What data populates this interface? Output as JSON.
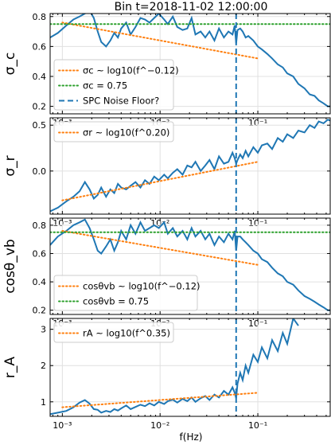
{
  "figure": {
    "title": "Bin t=2018-11-02 12:00:00",
    "xlabel": "f(Hz)"
  },
  "colors": {
    "data": "#1f77b4",
    "fit": "#ff7f0e",
    "ref": "#2ca02c",
    "noise": "#1f77b4",
    "grid": "#e0e0e0"
  },
  "chart_data": [
    {
      "type": "line",
      "ylabel": "σ_c",
      "xscale": "log",
      "xlim": [
        0.00075,
        0.55
      ],
      "ylim": [
        0.15,
        0.82
      ],
      "yticks": [
        0.2,
        0.4,
        0.6,
        0.8
      ],
      "yticklabels": [
        "0.2",
        "0.4",
        "0.6",
        "0.8"
      ],
      "xticklabels": [
        "10⁻³",
        "10⁻²",
        "10⁻¹"
      ],
      "legend": {
        "position": "bottom-left",
        "entries": [
          {
            "text": "σc ~ log10(f^−0.12)",
            "style": "fit"
          },
          {
            "text": "σc = 0.75",
            "style": "ref"
          },
          {
            "text": "SPC Noise Floor?",
            "style": "noise"
          }
        ]
      },
      "series": [
        {
          "style": "data",
          "x": [
            0.00075,
            0.0009,
            0.0011,
            0.0013,
            0.0015,
            0.0017,
            0.0019,
            0.0021,
            0.0023,
            0.0025,
            0.0028,
            0.0031,
            0.0034,
            0.0037,
            0.004,
            0.0045,
            0.005,
            0.0056,
            0.0063,
            0.007,
            0.0078,
            0.0087,
            0.0097,
            0.011,
            0.012,
            0.0135,
            0.015,
            0.017,
            0.019,
            0.021,
            0.023,
            0.026,
            0.029,
            0.032,
            0.036,
            0.04,
            0.045,
            0.05,
            0.055,
            0.058,
            0.06,
            0.062,
            0.066,
            0.07,
            0.075,
            0.08,
            0.09,
            0.1,
            0.11,
            0.125,
            0.14,
            0.16,
            0.18,
            0.2,
            0.23,
            0.26,
            0.3,
            0.34,
            0.38,
            0.42,
            0.47,
            0.52,
            0.55
          ],
          "y": [
            0.66,
            0.69,
            0.74,
            0.78,
            0.8,
            0.82,
            0.84,
            0.79,
            0.7,
            0.63,
            0.6,
            0.64,
            0.69,
            0.66,
            0.72,
            0.76,
            0.68,
            0.73,
            0.79,
            0.78,
            0.76,
            0.79,
            0.82,
            0.78,
            0.75,
            0.8,
            0.73,
            0.71,
            0.72,
            0.79,
            0.68,
            0.7,
            0.66,
            0.7,
            0.64,
            0.72,
            0.66,
            0.7,
            0.68,
            0.74,
            0.62,
            0.71,
            0.72,
            0.7,
            0.66,
            0.67,
            0.64,
            0.6,
            0.58,
            0.55,
            0.52,
            0.48,
            0.46,
            0.42,
            0.4,
            0.35,
            0.32,
            0.28,
            0.27,
            0.24,
            0.22,
            0.2,
            0.2
          ]
        },
        {
          "style": "fit",
          "x": [
            0.001,
            0.1
          ],
          "y": [
            0.76,
            0.52
          ]
        },
        {
          "style": "ref",
          "x": [
            0.00075,
            0.55
          ],
          "y": [
            0.75,
            0.75
          ]
        },
        {
          "style": "noise",
          "vline": 0.06
        }
      ]
    },
    {
      "type": "line",
      "ylabel": "σ_r",
      "xscale": "log",
      "xlim": [
        0.00075,
        0.55
      ],
      "ylim": [
        -0.47,
        0.58
      ],
      "yticks": [
        0.0,
        0.5
      ],
      "yticklabels": [
        "0.0",
        "0.5"
      ],
      "xticklabels": [
        "10⁻³",
        "10⁻²",
        "10⁻¹"
      ],
      "legend": {
        "position": "top-left",
        "entries": [
          {
            "text": "σr ~ log10(f^0.20)",
            "style": "fit"
          }
        ]
      },
      "series": [
        {
          "style": "data",
          "x": [
            0.00075,
            0.0009,
            0.0011,
            0.0013,
            0.0015,
            0.0017,
            0.0019,
            0.0021,
            0.0023,
            0.0025,
            0.0028,
            0.0031,
            0.0034,
            0.0037,
            0.004,
            0.0045,
            0.005,
            0.0056,
            0.0063,
            0.007,
            0.0078,
            0.0087,
            0.0097,
            0.011,
            0.012,
            0.0135,
            0.015,
            0.017,
            0.019,
            0.021,
            0.023,
            0.026,
            0.029,
            0.032,
            0.036,
            0.04,
            0.045,
            0.05,
            0.055,
            0.058,
            0.06,
            0.062,
            0.066,
            0.07,
            0.075,
            0.08,
            0.09,
            0.1,
            0.11,
            0.125,
            0.14,
            0.16,
            0.18,
            0.2,
            0.23,
            0.26,
            0.3,
            0.34,
            0.38,
            0.42,
            0.47,
            0.52,
            0.55
          ],
          "y": [
            -0.44,
            -0.4,
            -0.33,
            -0.28,
            -0.22,
            -0.12,
            -0.2,
            -0.3,
            -0.26,
            -0.18,
            -0.28,
            -0.2,
            -0.24,
            -0.14,
            -0.18,
            -0.2,
            -0.16,
            -0.12,
            -0.18,
            -0.1,
            -0.14,
            -0.06,
            -0.1,
            -0.04,
            -0.08,
            -0.02,
            0.02,
            -0.04,
            0.06,
            0.04,
            0.1,
            0.0,
            0.06,
            0.12,
            0.02,
            0.16,
            0.08,
            0.1,
            0.2,
            0.14,
            0.08,
            0.12,
            0.18,
            0.14,
            0.22,
            0.16,
            0.26,
            0.2,
            0.28,
            0.3,
            0.24,
            0.36,
            0.32,
            0.4,
            0.36,
            0.44,
            0.42,
            0.5,
            0.47,
            0.54,
            0.52,
            0.56,
            0.55
          ]
        },
        {
          "style": "fit",
          "x": [
            0.001,
            0.1
          ],
          "y": [
            -0.32,
            0.1
          ]
        },
        {
          "style": "noise",
          "vline": 0.06
        }
      ]
    },
    {
      "type": "line",
      "ylabel": "cosθ_vb",
      "xscale": "log",
      "xlim": [
        0.00075,
        0.55
      ],
      "ylim": [
        0.17,
        0.85
      ],
      "yticks": [
        0.2,
        0.4,
        0.6,
        0.8
      ],
      "yticklabels": [
        "0.2",
        "0.4",
        "0.6",
        "0.8"
      ],
      "xticklabels": [
        "10⁻³",
        "10⁻²",
        "10⁻¹"
      ],
      "legend": {
        "position": "bottom-left",
        "entries": [
          {
            "text": "cosθvb ~ log10(f^−0.12)",
            "style": "fit"
          },
          {
            "text": "cosθvb = 0.75",
            "style": "ref"
          }
        ]
      },
      "series": [
        {
          "style": "data",
          "x": [
            0.00075,
            0.0009,
            0.0011,
            0.0013,
            0.0015,
            0.0017,
            0.0019,
            0.0021,
            0.0023,
            0.0025,
            0.0028,
            0.0031,
            0.0034,
            0.0037,
            0.004,
            0.0045,
            0.005,
            0.0056,
            0.0063,
            0.007,
            0.0078,
            0.0087,
            0.0097,
            0.011,
            0.012,
            0.0135,
            0.015,
            0.017,
            0.019,
            0.021,
            0.023,
            0.026,
            0.029,
            0.032,
            0.036,
            0.04,
            0.045,
            0.05,
            0.055,
            0.058,
            0.06,
            0.062,
            0.066,
            0.07,
            0.075,
            0.08,
            0.09,
            0.1,
            0.11,
            0.125,
            0.14,
            0.16,
            0.18,
            0.2,
            0.23,
            0.26,
            0.3,
            0.34,
            0.38,
            0.42,
            0.47,
            0.52,
            0.55
          ],
          "y": [
            0.66,
            0.72,
            0.76,
            0.8,
            0.82,
            0.84,
            0.78,
            0.7,
            0.62,
            0.6,
            0.65,
            0.7,
            0.62,
            0.68,
            0.76,
            0.7,
            0.8,
            0.74,
            0.82,
            0.76,
            0.78,
            0.8,
            0.78,
            0.82,
            0.74,
            0.78,
            0.72,
            0.76,
            0.7,
            0.78,
            0.72,
            0.76,
            0.7,
            0.74,
            0.66,
            0.72,
            0.68,
            0.74,
            0.7,
            0.76,
            0.62,
            0.72,
            0.72,
            0.7,
            0.68,
            0.66,
            0.62,
            0.6,
            0.56,
            0.54,
            0.5,
            0.46,
            0.44,
            0.4,
            0.38,
            0.34,
            0.3,
            0.28,
            0.26,
            0.24,
            0.22,
            0.2,
            0.2
          ]
        },
        {
          "style": "fit",
          "x": [
            0.001,
            0.1
          ],
          "y": [
            0.76,
            0.52
          ]
        },
        {
          "style": "ref",
          "x": [
            0.00075,
            0.55
          ],
          "y": [
            0.75,
            0.75
          ]
        },
        {
          "style": "noise",
          "vline": 0.06
        }
      ]
    },
    {
      "type": "line",
      "ylabel": "r_A",
      "xscale": "log",
      "xlim": [
        0.00075,
        0.55
      ],
      "ylim": [
        0.6,
        3.3
      ],
      "yticks": [
        1,
        2,
        3
      ],
      "yticklabels": [
        "1",
        "2",
        "3"
      ],
      "xticklabels": [
        "10⁻³",
        "10⁻²",
        "10⁻¹"
      ],
      "legend": {
        "position": "top-left",
        "entries": [
          {
            "text": "rA ~ log10(f^0.35)",
            "style": "fit"
          }
        ]
      },
      "series": [
        {
          "style": "data",
          "x": [
            0.00075,
            0.0009,
            0.0011,
            0.0013,
            0.0015,
            0.0017,
            0.0019,
            0.0021,
            0.0023,
            0.0025,
            0.0028,
            0.0031,
            0.0034,
            0.0037,
            0.004,
            0.0045,
            0.005,
            0.0056,
            0.0063,
            0.007,
            0.0078,
            0.0087,
            0.0097,
            0.011,
            0.012,
            0.0135,
            0.015,
            0.017,
            0.019,
            0.021,
            0.023,
            0.026,
            0.029,
            0.032,
            0.036,
            0.04,
            0.045,
            0.05,
            0.055,
            0.058,
            0.06,
            0.062,
            0.066,
            0.07,
            0.075,
            0.08,
            0.09,
            0.1,
            0.11,
            0.125,
            0.14,
            0.16,
            0.18,
            0.2,
            0.23,
            0.26
          ],
          "y": [
            0.66,
            0.7,
            0.75,
            0.85,
            0.98,
            1.05,
            0.95,
            0.8,
            0.78,
            0.7,
            0.75,
            0.72,
            0.8,
            0.76,
            0.82,
            0.9,
            0.8,
            0.86,
            0.92,
            0.88,
            0.96,
            0.9,
            1.0,
            0.94,
            1.02,
            1.06,
            0.98,
            1.08,
            1.02,
            1.12,
            1.0,
            1.1,
            1.16,
            1.05,
            1.2,
            1.12,
            1.3,
            1.2,
            1.4,
            1.25,
            1.1,
            1.5,
            1.8,
            1.6,
            2.0,
            1.8,
            2.3,
            2.1,
            2.5,
            2.2,
            2.7,
            2.4,
            2.9,
            2.6,
            3.3,
            3.1
          ]
        },
        {
          "style": "fit",
          "x": [
            0.001,
            0.1
          ],
          "y": [
            0.85,
            1.25
          ]
        },
        {
          "style": "noise",
          "vline": 0.06
        }
      ]
    }
  ]
}
